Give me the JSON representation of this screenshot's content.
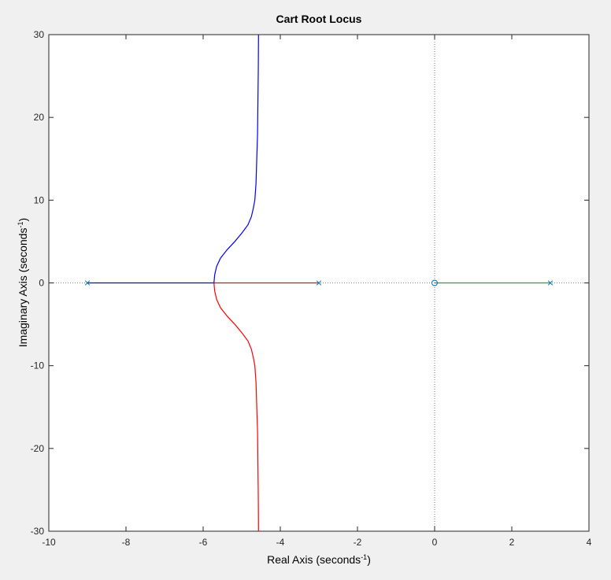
{
  "chart_data": {
    "type": "line",
    "title": "Cart Root Locus",
    "xlabel": {
      "text": "Real Axis (seconds",
      "sup": "-1",
      "close": ")"
    },
    "ylabel": {
      "text": "Imaginary Axis (seconds",
      "sup": "-1",
      "close": ")"
    },
    "xlim": [
      -10,
      4
    ],
    "ylim": [
      -30,
      30
    ],
    "xticks": [
      -10,
      -8,
      -6,
      -4,
      -2,
      0,
      2,
      4
    ],
    "yticks": [
      -30,
      -20,
      -10,
      0,
      10,
      20,
      30
    ],
    "grid": false,
    "legend": "none",
    "colors": {
      "blue": "#0000ff",
      "red": "#ff0000",
      "green": "#2ca02c",
      "marker": "#0072bd",
      "dotted": "#7f7f7f",
      "axes": "#262626"
    },
    "poles": [
      [
        -9,
        0
      ],
      [
        -3,
        0
      ],
      [
        3,
        0
      ]
    ],
    "zeros": [
      [
        0,
        0
      ]
    ],
    "series": [
      {
        "color": "blue",
        "x": [
          -9,
          -5.72
        ],
        "y": [
          0,
          0
        ]
      },
      {
        "color": "red",
        "x": [
          -3,
          -5.72
        ],
        "y": [
          0,
          0
        ]
      },
      {
        "color": "green",
        "x": [
          3,
          0
        ],
        "y": [
          0,
          0
        ]
      },
      {
        "color": "blue",
        "x": [
          -5.72,
          -5.7,
          -5.65,
          -5.55,
          -5.38,
          -5.18,
          -5.0,
          -4.84,
          -4.75,
          -4.7,
          -4.66,
          -4.63,
          -4.61,
          -4.59,
          -4.58,
          -4.57,
          -4.565
        ],
        "y": [
          0,
          1,
          2,
          3,
          4,
          5,
          6,
          7,
          8,
          9,
          10,
          12,
          15,
          18,
          22,
          26,
          30
        ]
      },
      {
        "color": "red",
        "x": [
          -5.72,
          -5.7,
          -5.65,
          -5.55,
          -5.38,
          -5.18,
          -5.0,
          -4.84,
          -4.75,
          -4.7,
          -4.66,
          -4.63,
          -4.61,
          -4.59,
          -4.58,
          -4.57,
          -4.565
        ],
        "y": [
          0,
          -1,
          -2,
          -3,
          -4,
          -5,
          -6,
          -7,
          -8,
          -9,
          -10,
          -12,
          -15,
          -18,
          -22,
          -26,
          -30
        ]
      }
    ]
  }
}
